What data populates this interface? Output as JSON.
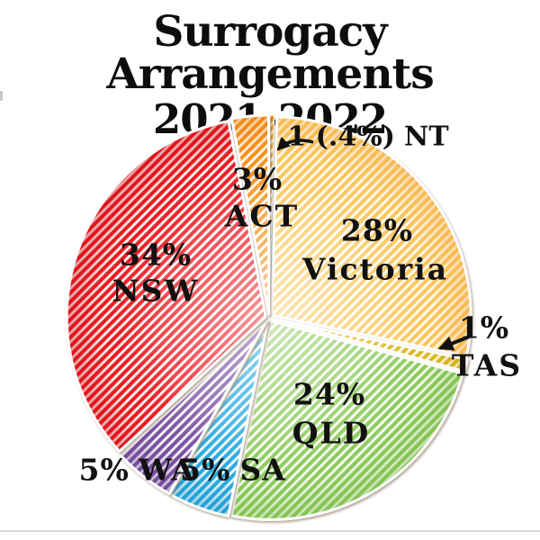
{
  "page": {
    "title_line1": "Surrogacy Arrangements",
    "title_line2": "2021-2022"
  },
  "chart_data": {
    "type": "pie",
    "title": "Surrogacy Arrangements 2021-2022",
    "direction": "clockwise",
    "start_angle_deg": 0,
    "style": "diagonal-hatch-stripes, exploded slices, white gaps, callout arrows for NT and TAS",
    "slices": [
      {
        "label": "NT",
        "value": 0.4,
        "count": 1,
        "pct": "1 (.4%)",
        "color": "#F0A125",
        "edge": "#DE8A10"
      },
      {
        "label": "Victoria",
        "value": 28,
        "pct": "28%",
        "color": "#FAC95F",
        "edge": "#F2A43B"
      },
      {
        "label": "TAS",
        "value": 1,
        "pct": "1%",
        "color": "#DDB91F",
        "edge": "#C7A212"
      },
      {
        "label": "QLD",
        "value": 24,
        "pct": "24%",
        "color": "#8FCC60",
        "edge": "#6FB63D"
      },
      {
        "label": "SA",
        "value": 5,
        "pct": "5%",
        "color": "#29ABE2",
        "edge": "#1791C9"
      },
      {
        "label": "WA",
        "value": 5,
        "pct": "5%",
        "color": "#7C52A6",
        "edge": "#63408D"
      },
      {
        "label": "NSW",
        "value": 34,
        "pct": "34%",
        "color": "#EC1C24",
        "edge": "#C91016"
      },
      {
        "label": "ACT",
        "value": 3,
        "pct": "3%",
        "color": "#F79420",
        "edge": "#E37D0C"
      }
    ],
    "callouts": [
      "NT",
      "TAS"
    ]
  }
}
